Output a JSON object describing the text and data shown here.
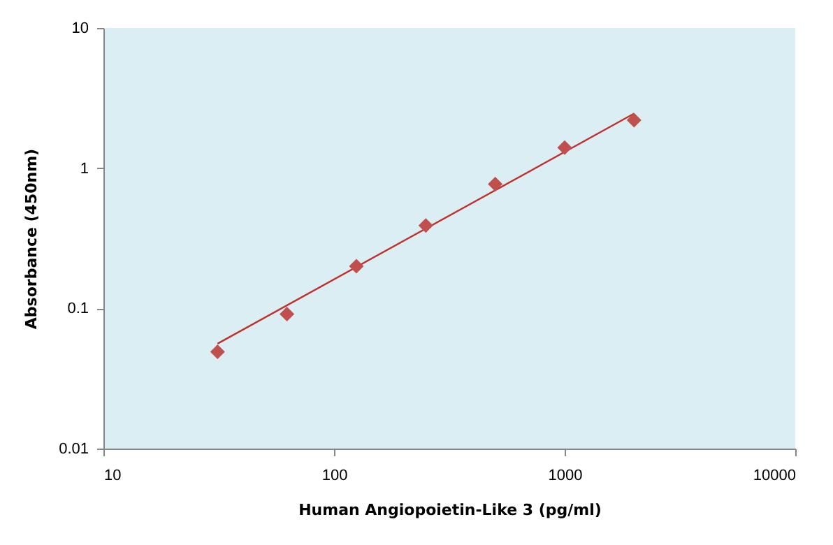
{
  "chart_data": {
    "type": "scatter",
    "xlabel": "Human Angiopoietin-Like  3 (pg/ml)",
    "ylabel": "Absorbance (450nm)",
    "log": "xy",
    "grid": false,
    "xlim": [
      10,
      10000
    ],
    "xticks": [
      10,
      100,
      1000,
      10000
    ],
    "ylim": [
      0.01,
      10
    ],
    "yticks": [
      0.01,
      0.1,
      1,
      10
    ],
    "series": [
      {
        "color": "#c0504d",
        "marker": "diamond",
        "x": [
          31.25,
          62.5,
          125,
          250,
          500,
          1000,
          2000
        ],
        "values": [
          0.049,
          0.091,
          0.2,
          0.39,
          0.77,
          1.4,
          2.2
        ]
      },
      {
        "type": "line",
        "color": "#c0302d",
        "x": [
          31.25,
          2000
        ],
        "values": [
          0.056,
          2.45
        ],
        "line_style": "solid"
      }
    ]
  }
}
